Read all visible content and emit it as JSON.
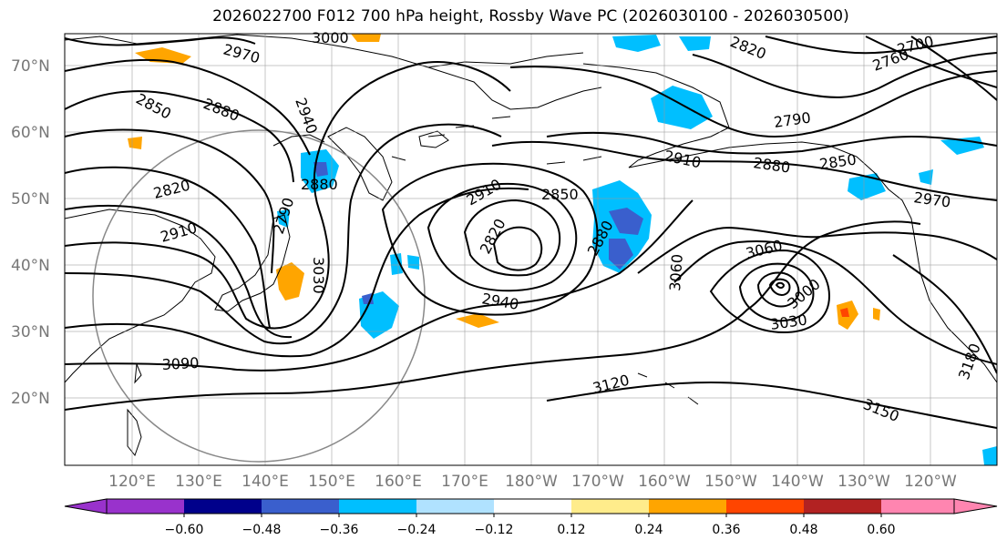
{
  "title": "2026022700 F012 700 hPa height, Rossby Wave PC (2026030100 - 2026030500)",
  "latitude_labels": [
    "70°N",
    "60°N",
    "50°N",
    "40°N",
    "30°N",
    "20°N"
  ],
  "longitude_labels": [
    "120°E",
    "130°E",
    "140°E",
    "150°E",
    "160°E",
    "170°E",
    "180°W",
    "170°W",
    "160°W",
    "150°W",
    "140°W",
    "130°W",
    "120°W"
  ],
  "contour_labels": [
    "3000",
    "2970",
    "2850",
    "2880",
    "2940",
    "2820",
    "2910",
    "2790",
    "2880",
    "3030",
    "3090",
    "2910",
    "2850",
    "2820",
    "2880",
    "2940",
    "3120",
    "3060",
    "3060",
    "3030",
    "3000",
    "2790",
    "2910",
    "2880",
    "2850",
    "2970",
    "3150",
    "3180",
    "2820",
    "2700",
    "2760"
  ],
  "colorbar": {
    "ticks": [
      "−0.60",
      "−0.48",
      "−0.36",
      "−0.24",
      "−0.12",
      "0.12",
      "0.24",
      "0.36",
      "0.48",
      "0.60"
    ],
    "colors": [
      "#9932cc",
      "#00008b",
      "#3a5fcd",
      "#00bfff",
      "#b0e2ff",
      "#ffffff",
      "#ffec8b",
      "#ffa500",
      "#ff4500",
      "#b22222",
      "#ff85b0"
    ]
  }
}
